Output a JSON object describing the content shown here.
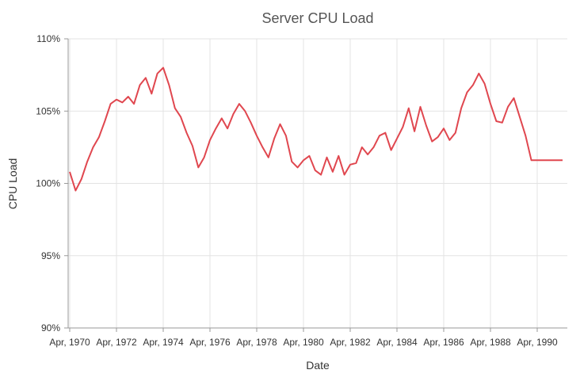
{
  "chart_data": {
    "type": "line",
    "title": "Server CPU Load",
    "xlabel": "Date",
    "ylabel": "CPU Load",
    "x_ticks": [
      "Apr, 1970",
      "Apr, 1972",
      "Apr, 1974",
      "Apr, 1976",
      "Apr, 1978",
      "Apr, 1980",
      "Apr, 1982",
      "Apr, 1984",
      "Apr, 1986",
      "Apr, 1988",
      "Apr, 1990"
    ],
    "y_ticks": [
      "90%",
      "95%",
      "100%",
      "105%",
      "110%"
    ],
    "xlim": [
      "1970-04",
      "1991-05"
    ],
    "ylim": [
      90,
      110
    ],
    "grid": true,
    "legend": "none",
    "colors": {
      "series": "#e0474f"
    },
    "series": [
      {
        "x": [
          "1970-04",
          "1970-07",
          "1970-10",
          "1971-01",
          "1971-04",
          "1971-07",
          "1971-10",
          "1972-01",
          "1972-04",
          "1972-07",
          "1972-10",
          "1973-01",
          "1973-04",
          "1973-07",
          "1973-10",
          "1974-01",
          "1974-04",
          "1974-07",
          "1974-10",
          "1975-01",
          "1975-04",
          "1975-07",
          "1975-10",
          "1976-01",
          "1976-04",
          "1976-07",
          "1976-10",
          "1977-01",
          "1977-04",
          "1977-07",
          "1977-10",
          "1978-01",
          "1978-04",
          "1978-07",
          "1978-10",
          "1979-01",
          "1979-04",
          "1979-07",
          "1979-10",
          "1980-01",
          "1980-04",
          "1980-07",
          "1980-10",
          "1981-01",
          "1981-04",
          "1981-07",
          "1981-10",
          "1982-01",
          "1982-04",
          "1982-07",
          "1982-10",
          "1983-01",
          "1983-04",
          "1983-07",
          "1983-10",
          "1984-01",
          "1984-04",
          "1984-07",
          "1984-10",
          "1985-01",
          "1985-04",
          "1985-07",
          "1985-10",
          "1986-01",
          "1986-04",
          "1986-07",
          "1986-10",
          "1987-01",
          "1987-04",
          "1987-07",
          "1987-10",
          "1988-01",
          "1988-04",
          "1988-07",
          "1988-10",
          "1989-01",
          "1989-04",
          "1989-07",
          "1989-10",
          "1990-01",
          "1990-04",
          "1990-07",
          "1990-10",
          "1991-01",
          "1991-05"
        ],
        "y": [
          100.8,
          99.5,
          100.3,
          101.5,
          102.5,
          103.2,
          104.3,
          105.5,
          105.8,
          105.6,
          106.0,
          105.5,
          106.8,
          107.3,
          106.2,
          107.6,
          108.0,
          106.8,
          105.2,
          104.6,
          103.5,
          102.6,
          101.1,
          101.8,
          103.0,
          103.8,
          104.5,
          103.8,
          104.8,
          105.5,
          105.0,
          104.2,
          103.3,
          102.5,
          101.8,
          103.1,
          104.1,
          103.3,
          101.5,
          101.1,
          101.6,
          101.9,
          100.9,
          100.6,
          101.8,
          100.8,
          101.9,
          100.6,
          101.3,
          101.4,
          102.5,
          102.0,
          102.5,
          103.3,
          103.5,
          102.3,
          103.1,
          103.9,
          105.2,
          103.6,
          105.3,
          104.0,
          102.9,
          103.2,
          103.8,
          103.0,
          103.5,
          105.2,
          106.3,
          106.8,
          107.6,
          106.9,
          105.5,
          104.3,
          104.2,
          105.3,
          105.9,
          104.6,
          103.3,
          101.6,
          101.6,
          101.6,
          101.6,
          101.6,
          101.6
        ]
      }
    ]
  }
}
